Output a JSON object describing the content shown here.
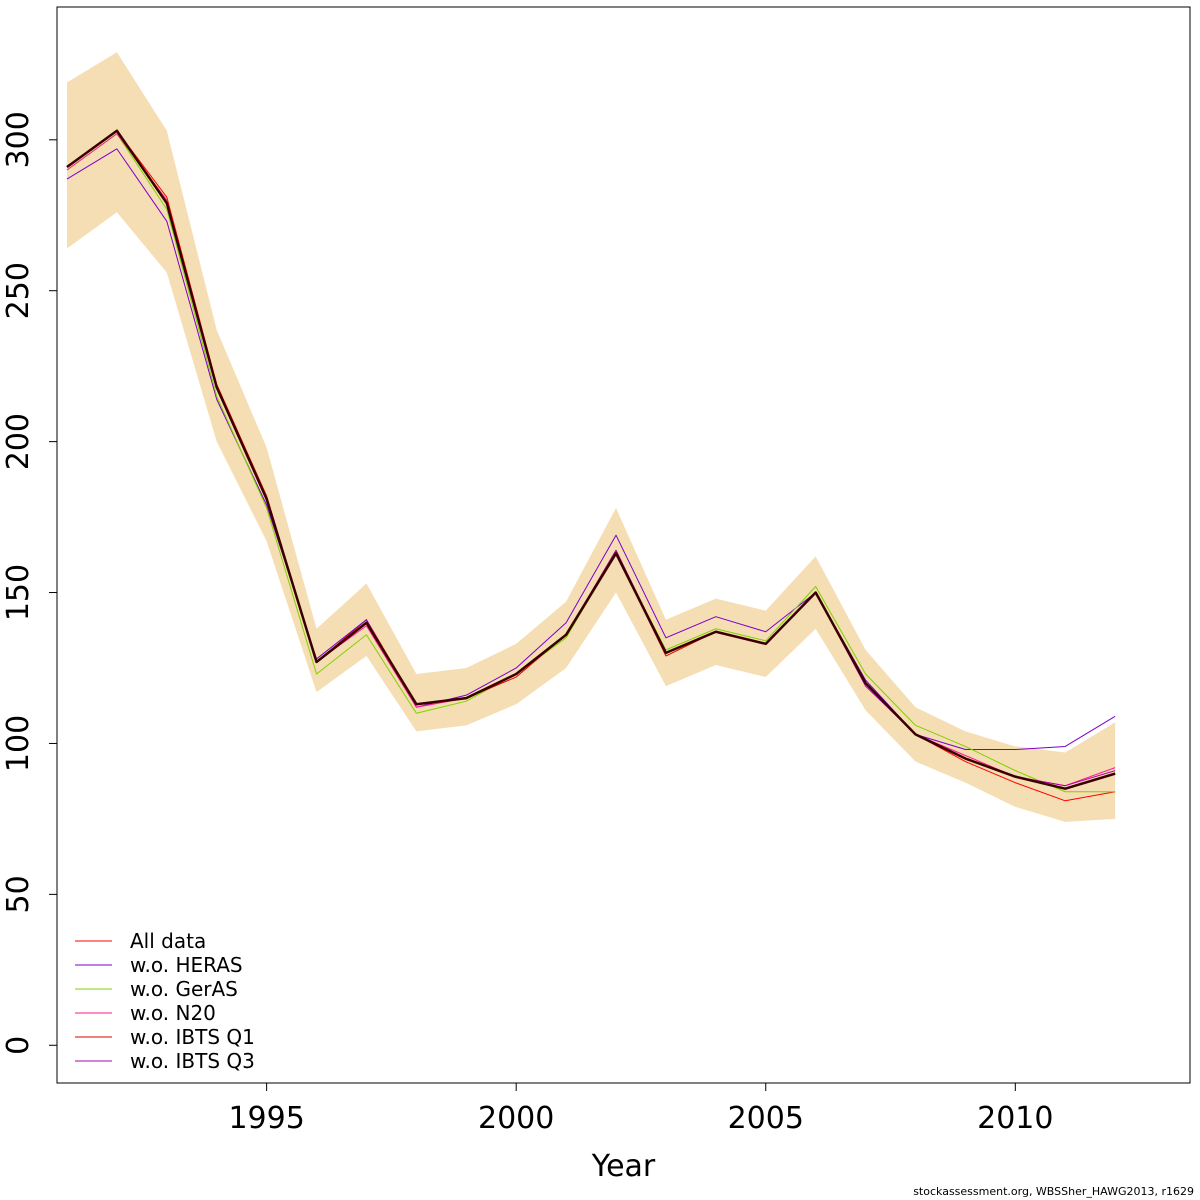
{
  "chart_data": {
    "type": "line",
    "title": "",
    "xlabel": "Year",
    "ylabel": "",
    "xlim": [
      1990.8,
      2013.5
    ],
    "ylim": [
      -12.5,
      344
    ],
    "x_ticks": [
      1995,
      2000,
      2005,
      2010
    ],
    "y_ticks": [
      0,
      50,
      100,
      150,
      200,
      250,
      300
    ],
    "grid": false,
    "legend_position": "bottom-left",
    "band": {
      "color": "#F5DEB3",
      "x": [
        1991,
        1992,
        1993,
        1994,
        1995,
        1996,
        1997,
        1998,
        1999,
        2000,
        2001,
        2002,
        2003,
        2004,
        2005,
        2006,
        2007,
        2008,
        2009,
        2010,
        2011,
        2012
      ],
      "upper": [
        319,
        329,
        303,
        237,
        198,
        138,
        153,
        123,
        125,
        133,
        147,
        178,
        141,
        148,
        144,
        162,
        131,
        112,
        104,
        99,
        97,
        107
      ],
      "lower": [
        264,
        276,
        256,
        200,
        167,
        117,
        129,
        104,
        106,
        113,
        125,
        150,
        119,
        126,
        122,
        138,
        111,
        94,
        87,
        79,
        74,
        75
      ]
    },
    "x": [
      1991,
      1992,
      1993,
      1994,
      1995,
      1996,
      1997,
      1998,
      1999,
      2000,
      2001,
      2002,
      2003,
      2004,
      2005,
      2006,
      2007,
      2008,
      2009,
      2010,
      2011,
      2012
    ],
    "series": [
      {
        "name": "All data",
        "color": "#FF0000",
        "width": 1,
        "values": [
          291,
          303,
          281,
          219,
          182,
          127,
          141,
          113,
          115,
          123,
          136,
          164,
          130,
          137,
          133,
          150,
          120,
          103,
          94,
          87,
          81,
          84
        ]
      },
      {
        "name": "w.o. HERAS",
        "color": "#7B00CC",
        "width": 1,
        "values": [
          287,
          297,
          273,
          214,
          179,
          128,
          141,
          112,
          116,
          125,
          140,
          169,
          135,
          142,
          137,
          150,
          121,
          103,
          98,
          98,
          99,
          109
        ]
      },
      {
        "name": "w.o. GerAS",
        "color": "#7FD100",
        "width": 1,
        "values": [
          290,
          302,
          277,
          215,
          178,
          123,
          136,
          110,
          114,
          123,
          135,
          163,
          131,
          138,
          134,
          152,
          123,
          106,
          99,
          91,
          84,
          84
        ]
      },
      {
        "name": "w.o. N20",
        "color": "#FF1A8C",
        "width": 1,
        "values": [
          290,
          302,
          280,
          218,
          181,
          127,
          139,
          112,
          115,
          123,
          136,
          163,
          130,
          137,
          133,
          150,
          120,
          103,
          96,
          89,
          86,
          92
        ]
      },
      {
        "name": "w.o. IBTS Q1",
        "color": "#E00000",
        "width": 1,
        "values": [
          291,
          303,
          279,
          218,
          181,
          127,
          140,
          113,
          115,
          122,
          136,
          163,
          129,
          137,
          133,
          150,
          120,
          103,
          95,
          89,
          85,
          90
        ]
      },
      {
        "name": "w.o. IBTS Q3",
        "color": "#AA00AA",
        "width": 1,
        "values": [
          291,
          303,
          279,
          218,
          181,
          127,
          140,
          113,
          115,
          123,
          136,
          164,
          130,
          137,
          133,
          150,
          119,
          103,
          95,
          89,
          86,
          91
        ]
      },
      {
        "name": "",
        "color": "#3A0000",
        "width": 2.5,
        "values": [
          291,
          303,
          279,
          218,
          181,
          127,
          140,
          113,
          115,
          123,
          136,
          163,
          130,
          137,
          133,
          150,
          120,
          103,
          95,
          89,
          85,
          90
        ]
      }
    ]
  },
  "footer": {
    "credit": "stockassessment.org, WBSSher_HAWG2013, r1629"
  }
}
